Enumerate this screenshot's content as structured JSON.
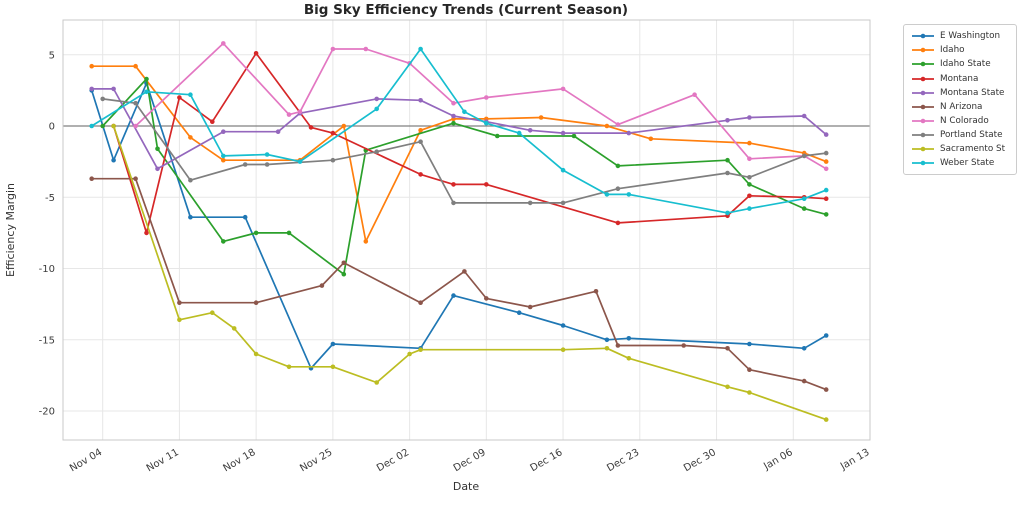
{
  "chart_data": {
    "type": "line",
    "title": "Big Sky Efficiency Trends (Current Season)",
    "xlabel": "Date",
    "ylabel": "Efficiency Margin",
    "x_tick_labels": [
      "Nov 04",
      "Nov 11",
      "Nov 18",
      "Nov 25",
      "Dec 02",
      "Dec 09",
      "Dec 16",
      "Dec 23",
      "Dec 30",
      "Jan 06",
      "Jan 13"
    ],
    "y_ticks": [
      5,
      0,
      -5,
      -10,
      -15,
      -20
    ],
    "ylim": [
      -22,
      7.4
    ],
    "grid": true,
    "zero_line": true,
    "legend_position": "outside-right",
    "marker": "dot",
    "series": [
      {
        "name": "E Washington",
        "color": "#1f77b4",
        "points": [
          [
            "Nov 03",
            2.5
          ],
          [
            "Nov 05",
            -2.4
          ],
          [
            "Nov 08",
            3.0
          ],
          [
            "Nov 12",
            -6.4
          ],
          [
            "Nov 17",
            -6.4
          ],
          [
            "Nov 23",
            -17.0
          ],
          [
            "Nov 25",
            -15.3
          ],
          [
            "Dec 03",
            -15.6
          ],
          [
            "Dec 06",
            -11.9
          ],
          [
            "Dec 12",
            -13.1
          ],
          [
            "Dec 16",
            -14.0
          ],
          [
            "Dec 20",
            -15.0
          ],
          [
            "Dec 22",
            -14.9
          ],
          [
            "Jan 02",
            -15.3
          ],
          [
            "Jan 07",
            -15.6
          ],
          [
            "Jan 09",
            -14.7
          ]
        ]
      },
      {
        "name": "Idaho",
        "color": "#ff7f0e",
        "points": [
          [
            "Nov 03",
            4.2
          ],
          [
            "Nov 07",
            4.2
          ],
          [
            "Nov 12",
            -0.8
          ],
          [
            "Nov 15",
            -2.4
          ],
          [
            "Nov 22",
            -2.4
          ],
          [
            "Nov 26",
            0.0
          ],
          [
            "Nov 28",
            -8.1
          ],
          [
            "Dec 03",
            -0.3
          ],
          [
            "Dec 06",
            0.5
          ],
          [
            "Dec 09",
            0.5
          ],
          [
            "Dec 14",
            0.6
          ],
          [
            "Dec 20",
            0.0
          ],
          [
            "Dec 24",
            -0.9
          ],
          [
            "Jan 02",
            -1.2
          ],
          [
            "Jan 07",
            -1.9
          ],
          [
            "Jan 09",
            -2.5
          ]
        ]
      },
      {
        "name": "Idaho State",
        "color": "#2ca02c",
        "points": [
          [
            "Nov 04",
            0.0
          ],
          [
            "Nov 08",
            3.3
          ],
          [
            "Nov 09",
            -1.6
          ],
          [
            "Nov 15",
            -8.1
          ],
          [
            "Nov 18",
            -7.5
          ],
          [
            "Nov 21",
            -7.5
          ],
          [
            "Nov 26",
            -10.4
          ],
          [
            "Nov 28",
            -1.7
          ],
          [
            "Dec 06",
            0.2
          ],
          [
            "Dec 10",
            -0.7
          ],
          [
            "Dec 17",
            -0.7
          ],
          [
            "Dec 21",
            -2.8
          ],
          [
            "Dec 31",
            -2.4
          ],
          [
            "Jan 02",
            -4.1
          ],
          [
            "Jan 07",
            -5.8
          ],
          [
            "Jan 09",
            -6.2
          ]
        ]
      },
      {
        "name": "Montana",
        "color": "#d62728",
        "points": [
          [
            "Nov 05",
            0.0
          ],
          [
            "Nov 08",
            -7.5
          ],
          [
            "Nov 11",
            2.0
          ],
          [
            "Nov 14",
            0.3
          ],
          [
            "Nov 18",
            5.1
          ],
          [
            "Nov 23",
            -0.1
          ],
          [
            "Nov 25",
            -0.5
          ],
          [
            "Dec 03",
            -3.4
          ],
          [
            "Dec 06",
            -4.1
          ],
          [
            "Dec 09",
            -4.1
          ],
          [
            "Dec 21",
            -6.8
          ],
          [
            "Dec 31",
            -6.3
          ],
          [
            "Jan 02",
            -4.9
          ],
          [
            "Jan 07",
            -5.0
          ],
          [
            "Jan 09",
            -5.1
          ]
        ]
      },
      {
        "name": "Montana State",
        "color": "#9467bd",
        "points": [
          [
            "Nov 03",
            2.6
          ],
          [
            "Nov 05",
            2.6
          ],
          [
            "Nov 09",
            -3.0
          ],
          [
            "Nov 15",
            -0.4
          ],
          [
            "Nov 20",
            -0.4
          ],
          [
            "Nov 22",
            0.9
          ],
          [
            "Nov 29",
            1.9
          ],
          [
            "Dec 03",
            1.8
          ],
          [
            "Dec 06",
            0.7
          ],
          [
            "Dec 09",
            0.3
          ],
          [
            "Dec 13",
            -0.3
          ],
          [
            "Dec 16",
            -0.5
          ],
          [
            "Dec 22",
            -0.5
          ],
          [
            "Dec 31",
            0.4
          ],
          [
            "Jan 02",
            0.6
          ],
          [
            "Jan 07",
            0.7
          ],
          [
            "Jan 09",
            -0.6
          ]
        ]
      },
      {
        "name": "N Arizona",
        "color": "#8c564b",
        "points": [
          [
            "Nov 03",
            -3.7
          ],
          [
            "Nov 07",
            -3.7
          ],
          [
            "Nov 11",
            -12.4
          ],
          [
            "Nov 18",
            -12.4
          ],
          [
            "Nov 24",
            -11.2
          ],
          [
            "Nov 26",
            -9.6
          ],
          [
            "Dec 03",
            -12.4
          ],
          [
            "Dec 07",
            -10.2
          ],
          [
            "Dec 09",
            -12.1
          ],
          [
            "Dec 13",
            -12.7
          ],
          [
            "Dec 19",
            -11.6
          ],
          [
            "Dec 21",
            -15.4
          ],
          [
            "Dec 27",
            -15.4
          ],
          [
            "Dec 31",
            -15.6
          ],
          [
            "Jan 02",
            -17.1
          ],
          [
            "Jan 07",
            -17.9
          ],
          [
            "Jan 09",
            -18.5
          ]
        ]
      },
      {
        "name": "N Colorado",
        "color": "#e377c2",
        "points": [
          [
            "Nov 07",
            0.0
          ],
          [
            "Nov 15",
            5.8
          ],
          [
            "Nov 21",
            0.8
          ],
          [
            "Nov 22",
            1.0
          ],
          [
            "Nov 25",
            5.4
          ],
          [
            "Nov 28",
            5.4
          ],
          [
            "Dec 02",
            4.4
          ],
          [
            "Dec 06",
            1.6
          ],
          [
            "Dec 09",
            2.0
          ],
          [
            "Dec 16",
            2.6
          ],
          [
            "Dec 21",
            0.1
          ],
          [
            "Dec 28",
            2.2
          ],
          [
            "Jan 02",
            -2.3
          ],
          [
            "Jan 07",
            -2.1
          ],
          [
            "Jan 09",
            -3.0
          ]
        ]
      },
      {
        "name": "Portland State",
        "color": "#7f7f7f",
        "points": [
          [
            "Nov 04",
            1.9
          ],
          [
            "Nov 07",
            1.6
          ],
          [
            "Nov 12",
            -3.8
          ],
          [
            "Nov 17",
            -2.7
          ],
          [
            "Nov 19",
            -2.7
          ],
          [
            "Nov 25",
            -2.4
          ],
          [
            "Nov 29",
            -1.8
          ],
          [
            "Dec 03",
            -1.1
          ],
          [
            "Dec 06",
            -5.4
          ],
          [
            "Dec 13",
            -5.4
          ],
          [
            "Dec 16",
            -5.4
          ],
          [
            "Dec 21",
            -4.4
          ],
          [
            "Dec 31",
            -3.3
          ],
          [
            "Jan 02",
            -3.6
          ],
          [
            "Jan 07",
            -2.1
          ],
          [
            "Jan 09",
            -1.9
          ]
        ]
      },
      {
        "name": "Sacramento St",
        "color": "#bcbd22",
        "points": [
          [
            "Nov 05",
            0.0
          ],
          [
            "Nov 11",
            -13.6
          ],
          [
            "Nov 14",
            -13.1
          ],
          [
            "Nov 16",
            -14.2
          ],
          [
            "Nov 18",
            -16.0
          ],
          [
            "Nov 21",
            -16.9
          ],
          [
            "Nov 25",
            -16.9
          ],
          [
            "Nov 29",
            -18.0
          ],
          [
            "Dec 02",
            -16.0
          ],
          [
            "Dec 03",
            -15.7
          ],
          [
            "Dec 16",
            -15.7
          ],
          [
            "Dec 20",
            -15.6
          ],
          [
            "Dec 22",
            -16.3
          ],
          [
            "Dec 31",
            -18.3
          ],
          [
            "Jan 02",
            -18.7
          ],
          [
            "Jan 09",
            -20.6
          ]
        ]
      },
      {
        "name": "Weber State",
        "color": "#17becf",
        "points": [
          [
            "Nov 03",
            0.0
          ],
          [
            "Nov 08",
            2.4
          ],
          [
            "Nov 12",
            2.2
          ],
          [
            "Nov 15",
            -2.1
          ],
          [
            "Nov 19",
            -2.0
          ],
          [
            "Nov 22",
            -2.5
          ],
          [
            "Nov 29",
            1.2
          ],
          [
            "Dec 03",
            5.4
          ],
          [
            "Dec 07",
            1.0
          ],
          [
            "Dec 09",
            0.2
          ],
          [
            "Dec 12",
            -0.5
          ],
          [
            "Dec 16",
            -3.1
          ],
          [
            "Dec 20",
            -4.8
          ],
          [
            "Dec 22",
            -4.8
          ],
          [
            "Dec 31",
            -6.1
          ],
          [
            "Jan 02",
            -5.8
          ],
          [
            "Jan 07",
            -5.1
          ],
          [
            "Jan 09",
            -4.5
          ]
        ]
      }
    ]
  }
}
